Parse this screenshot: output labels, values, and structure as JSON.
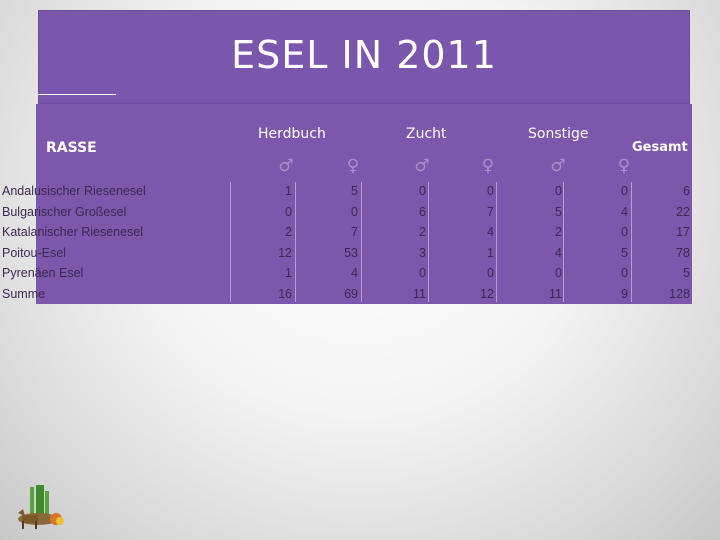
{
  "title": "ESEL IN 2011",
  "table": {
    "header_rasse": "RASSE",
    "groups": [
      "Herdbuch",
      "Zucht",
      "Sonstige"
    ],
    "gesamt": "Gesamt",
    "sex_symbols": [
      "♂",
      "♀",
      "♂",
      "♀",
      "♂",
      "♀"
    ],
    "rows": [
      {
        "label": "Andalusischer Riesenesel",
        "values": [
          "1",
          "5",
          "0",
          "0",
          "0",
          "0",
          "6"
        ]
      },
      {
        "label": "Bulgarischer Großesel",
        "values": [
          "0",
          "0",
          "6",
          "7",
          "5",
          "4",
          "22"
        ]
      },
      {
        "label": "Katalanischer Riesenesel",
        "values": [
          "2",
          "7",
          "2",
          "4",
          "2",
          "0",
          "17"
        ]
      },
      {
        "label": "Poitou-Esel",
        "values": [
          "12",
          "53",
          "3",
          "1",
          "4",
          "5",
          "78"
        ]
      },
      {
        "label": "Pyrenäen Esel",
        "values": [
          "1",
          "4",
          "0",
          "0",
          "0",
          "0",
          "5"
        ]
      },
      {
        "label": "Summe",
        "values": [
          "16",
          "69",
          "11",
          "12",
          "11",
          "9",
          "128"
        ]
      }
    ]
  },
  "colors": {
    "header_background": "#7b56ad",
    "table_background": "#7d57ac",
    "text_white": "#ffffff",
    "cell_text": "#3b2a52"
  },
  "logo": {
    "icon": "donkey-logo-icon"
  }
}
